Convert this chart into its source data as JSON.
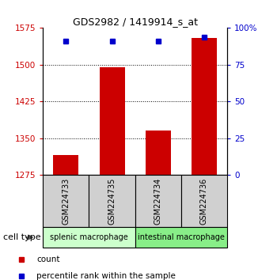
{
  "title": "GDS2982 / 1419914_s_at",
  "samples": [
    "GSM224733",
    "GSM224735",
    "GSM224734",
    "GSM224736"
  ],
  "count_values": [
    1315,
    1495,
    1365,
    1555
  ],
  "percentile_values": [
    91,
    91,
    91,
    94
  ],
  "ylim_left": [
    1275,
    1575
  ],
  "ylim_right": [
    0,
    100
  ],
  "yticks_left": [
    1275,
    1350,
    1425,
    1500,
    1575
  ],
  "yticks_right": [
    0,
    25,
    50,
    75,
    100
  ],
  "ytick_labels_right": [
    "0",
    "25",
    "50",
    "75",
    "100%"
  ],
  "bar_color": "#cc0000",
  "dot_color": "#0000cc",
  "bar_width": 0.55,
  "groups": [
    {
      "name": "splenic macrophage",
      "indices": [
        0,
        1
      ],
      "color": "#ccffcc"
    },
    {
      "name": "intestinal macrophage",
      "indices": [
        2,
        3
      ],
      "color": "#88ee88"
    }
  ],
  "cell_type_label": "cell type",
  "legend_count_label": "count",
  "legend_pct_label": "percentile rank within the sample",
  "left_tick_color": "#cc0000",
  "right_tick_color": "#0000cc",
  "grid_color": "#000000",
  "sample_box_color": "#d0d0d0",
  "title_fontsize": 9,
  "tick_fontsize": 7.5,
  "sample_fontsize": 7,
  "group_fontsize": 7,
  "legend_fontsize": 7.5
}
